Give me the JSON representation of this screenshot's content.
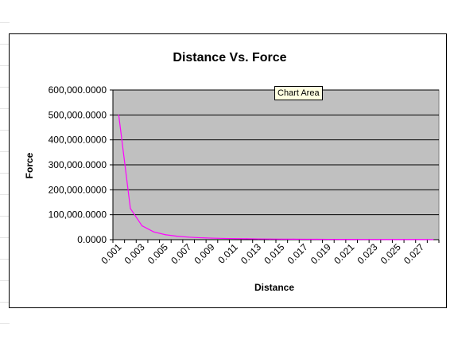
{
  "tooltip": {
    "label": "Chart Area"
  },
  "colors": {
    "plot_bg": "#c0c0c0",
    "series": "#ff00ff",
    "gridline": "#000000"
  },
  "chart_data": {
    "type": "line",
    "title": "Distance Vs. Force",
    "xlabel": "Distance",
    "ylabel": "Force",
    "ylim": [
      0,
      600000
    ],
    "y_ticks": [
      "0.0000",
      "100,000.0000",
      "200,000.0000",
      "300,000.0000",
      "400,000.0000",
      "500,000.0000",
      "600,000.0000"
    ],
    "x_tick_labels": [
      "0.001",
      "0.003",
      "0.005",
      "0.007",
      "0.009",
      "0.011",
      "0.013",
      "0.015",
      "0.017",
      "0.019",
      "0.021",
      "0.023",
      "0.025",
      "0.027"
    ],
    "grid": true,
    "legend": "none",
    "categories": [
      "0.001",
      "0.002",
      "0.003",
      "0.004",
      "0.005",
      "0.006",
      "0.007",
      "0.008",
      "0.009",
      "0.01",
      "0.011",
      "0.012",
      "0.013",
      "0.014",
      "0.015",
      "0.016",
      "0.017",
      "0.018",
      "0.019",
      "0.02",
      "0.021",
      "0.022",
      "0.023",
      "0.024",
      "0.025",
      "0.026",
      "0.027",
      "0.028"
    ],
    "series": [
      {
        "values": [
          500000,
          125000,
          55556,
          31250,
          20000,
          13889,
          10204,
          7813,
          6173,
          5000,
          4132,
          3472,
          2959,
          2551,
          2222,
          1953,
          1730,
          1543,
          1385,
          1250,
          1134,
          1033,
          945,
          868,
          800,
          740,
          686,
          638
        ]
      }
    ]
  }
}
